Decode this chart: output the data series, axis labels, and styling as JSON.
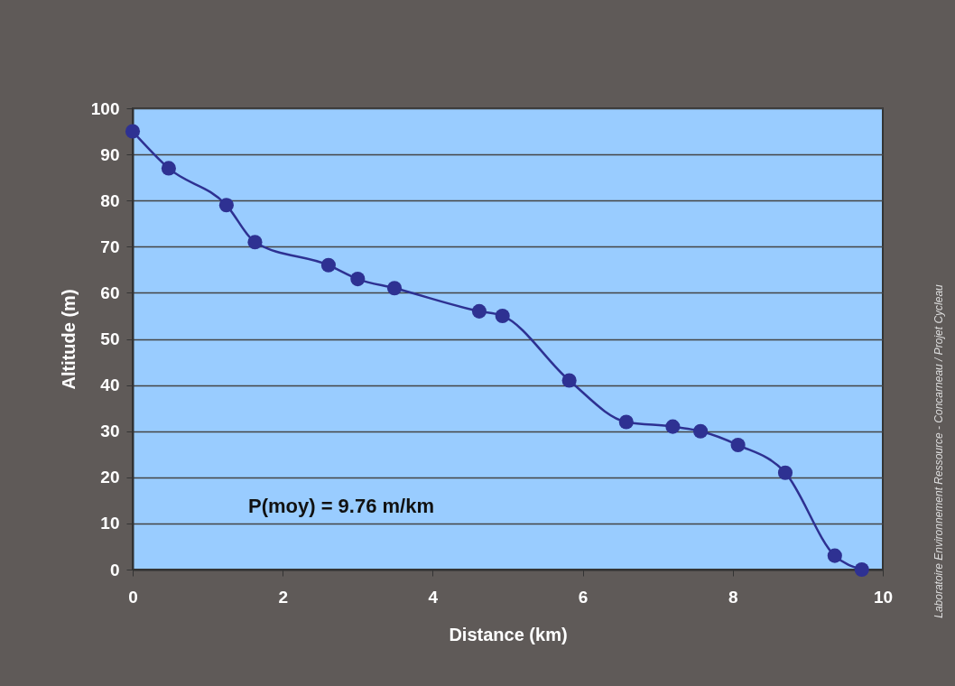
{
  "chart_data": {
    "type": "line",
    "xlabel": "Distance (km)",
    "ylabel": "Altitude (m)",
    "x": [
      0,
      0.48,
      1.25,
      1.63,
      2.61,
      3.0,
      3.49,
      4.62,
      4.93,
      5.82,
      6.58,
      7.2,
      7.57,
      8.07,
      8.7,
      9.36,
      9.72
    ],
    "series": [
      {
        "color": "#2e3192",
        "values": [
          95,
          87,
          79,
          71,
          66,
          63,
          61,
          56,
          55,
          41,
          32,
          31,
          30,
          27,
          21,
          3,
          0
        ]
      }
    ],
    "xlim": [
      0,
      10
    ],
    "xticks": [
      0,
      2,
      4,
      6,
      8,
      10
    ],
    "ylim": [
      0,
      100
    ],
    "yticks": [
      0,
      10,
      20,
      30,
      40,
      50,
      60,
      70,
      80,
      90,
      100
    ],
    "grid": "y",
    "marker": "circle",
    "line_style": "solid",
    "annotations": [
      "P(moy) = 9.76 m/km",
      "Laboratoire Environnement Ressource - Concarneau / Projet Cycleau"
    ]
  }
}
